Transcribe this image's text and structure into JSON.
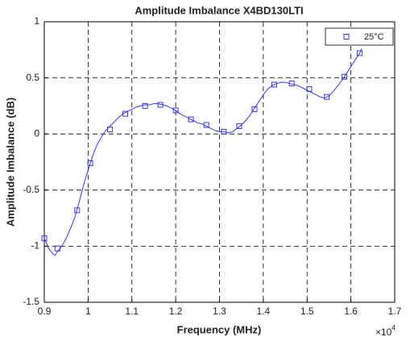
{
  "chart_data": {
    "type": "line",
    "title": "Amplitude Imbalance  X4BD130LTI",
    "xlabel": "Frequency (MHz)",
    "ylabel": "Amplitude Imbalance (dB)",
    "x_multiplier": "×10",
    "x_multiplier_exp": "4",
    "xlim": [
      0.9,
      1.7
    ],
    "xticks": [
      0.9,
      1,
      1.1,
      1.2,
      1.3,
      1.4,
      1.5,
      1.6,
      1.7
    ],
    "ylim": [
      -1.5,
      1
    ],
    "yticks": [
      -1.5,
      -1,
      -0.5,
      0,
      0.5,
      1
    ],
    "grid": true,
    "legend": "upper right",
    "series": [
      {
        "name": "25°C",
        "color": "#3838e0",
        "x": [
          0.9,
          0.91,
          0.92,
          0.925,
          0.93,
          0.94,
          0.95,
          0.96,
          0.97,
          0.98,
          0.99,
          1.0,
          1.01,
          1.02,
          1.03,
          1.04,
          1.05,
          1.06,
          1.07,
          1.08,
          1.09,
          1.1,
          1.11,
          1.12,
          1.13,
          1.14,
          1.15,
          1.16,
          1.17,
          1.18,
          1.19,
          1.2,
          1.21,
          1.22,
          1.23,
          1.24,
          1.25,
          1.26,
          1.27,
          1.28,
          1.29,
          1.3,
          1.31,
          1.32,
          1.33,
          1.34,
          1.35,
          1.36,
          1.37,
          1.38,
          1.39,
          1.4,
          1.41,
          1.42,
          1.43,
          1.44,
          1.45,
          1.46,
          1.47,
          1.48,
          1.49,
          1.5,
          1.51,
          1.52,
          1.53,
          1.54,
          1.55,
          1.56,
          1.57,
          1.58,
          1.59,
          1.6,
          1.61,
          1.62,
          1.625
        ],
        "values": [
          -0.93,
          -1.02,
          -1.07,
          -1.08,
          -1.05,
          -1.0,
          -0.93,
          -0.84,
          -0.74,
          -0.6,
          -0.45,
          -0.32,
          -0.2,
          -0.1,
          -0.03,
          0.03,
          0.07,
          0.11,
          0.15,
          0.18,
          0.2,
          0.22,
          0.24,
          0.25,
          0.26,
          0.26,
          0.27,
          0.27,
          0.26,
          0.25,
          0.23,
          0.21,
          0.18,
          0.16,
          0.14,
          0.12,
          0.1,
          0.09,
          0.07,
          0.05,
          0.03,
          0.02,
          0.02,
          0.01,
          0.02,
          0.05,
          0.08,
          0.12,
          0.17,
          0.23,
          0.29,
          0.35,
          0.4,
          0.43,
          0.45,
          0.46,
          0.46,
          0.45,
          0.44,
          0.43,
          0.41,
          0.39,
          0.37,
          0.35,
          0.33,
          0.32,
          0.34,
          0.38,
          0.43,
          0.48,
          0.54,
          0.6,
          0.66,
          0.72,
          0.76
        ]
      }
    ],
    "markers": {
      "x": [
        0.9,
        0.93,
        0.975,
        1.005,
        1.05,
        1.085,
        1.13,
        1.165,
        1.2,
        1.235,
        1.27,
        1.31,
        1.345,
        1.38,
        1.425,
        1.465,
        1.505,
        1.545,
        1.585,
        1.62
      ],
      "values": [
        -0.93,
        -1.02,
        -0.68,
        -0.26,
        0.04,
        0.18,
        0.25,
        0.26,
        0.21,
        0.13,
        0.08,
        0.02,
        0.07,
        0.22,
        0.44,
        0.45,
        0.4,
        0.33,
        0.51,
        0.72
      ]
    }
  }
}
